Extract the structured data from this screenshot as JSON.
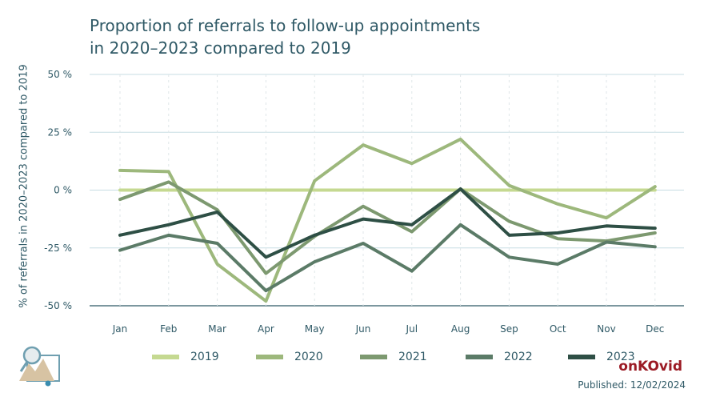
{
  "title_line1": "Proportion of referrals to follow-up appointments",
  "title_line2": "in 2020–2023 compared to 2019",
  "brand": "onKOvid",
  "published": "Published: 12/02/2024",
  "chart_data": {
    "type": "line",
    "title": "Proportion of referrals to follow-up appointments in 2020–2023 compared to 2019",
    "xlabel": "",
    "ylabel": "% of referrals in 2020–2023 compared to 2019",
    "categories": [
      "Jan",
      "Feb",
      "Mar",
      "Apr",
      "May",
      "Jun",
      "Jul",
      "Aug",
      "Sep",
      "Oct",
      "Nov",
      "Dec"
    ],
    "ylim": [
      -50,
      50
    ],
    "yticks": [
      50,
      25,
      0,
      -25,
      -50
    ],
    "ytick_labels": [
      "50 %",
      "25 %",
      "0 %",
      "-25 %",
      "-50 %"
    ],
    "grid": true,
    "legend_position": "bottom",
    "series": [
      {
        "name": "2019",
        "color": "#c5d991",
        "values": [
          0,
          0,
          0,
          0,
          0,
          0,
          0,
          0,
          0,
          0,
          0,
          0
        ]
      },
      {
        "name": "2020",
        "color": "#9db87c",
        "values": [
          8.5,
          8,
          -32,
          -48,
          4,
          19.5,
          11.5,
          22,
          2,
          -6,
          -12,
          1.5
        ]
      },
      {
        "name": "2021",
        "color": "#7d9970",
        "values": [
          -4,
          3.5,
          -8.5,
          -36,
          -20,
          -7,
          -18,
          0.5,
          -13.5,
          -21,
          -22,
          -18.5
        ]
      },
      {
        "name": "2022",
        "color": "#5b7b67",
        "values": [
          -26,
          -19.5,
          -23,
          -43.5,
          -31,
          -23,
          -35,
          -15,
          -29,
          -32,
          -22.5,
          -24.5
        ]
      },
      {
        "name": "2023",
        "color": "#2e4f45",
        "values": [
          -19.5,
          -15,
          -9.5,
          -29,
          -19.5,
          -12.5,
          -15,
          0.5,
          -19.5,
          -18.5,
          -15.5,
          -16.5
        ]
      }
    ]
  }
}
